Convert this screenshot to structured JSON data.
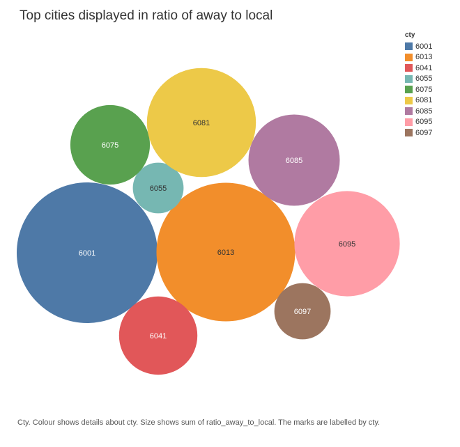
{
  "title": "Top cities displayed in ratio of away to local",
  "legend": {
    "title": "cty",
    "items": [
      {
        "label": "6001",
        "color": "#4e79a7"
      },
      {
        "label": "6013",
        "color": "#f28e2b"
      },
      {
        "label": "6041",
        "color": "#e15759"
      },
      {
        "label": "6055",
        "color": "#76b7b2"
      },
      {
        "label": "6075",
        "color": "#59a14f"
      },
      {
        "label": "6081",
        "color": "#edc948"
      },
      {
        "label": "6085",
        "color": "#b07aa1"
      },
      {
        "label": "6095",
        "color": "#ff9da7"
      },
      {
        "label": "6097",
        "color": "#9c755f"
      }
    ]
  },
  "caption": "Cty.  Colour shows details about cty.  Size shows sum of ratio_away_to_local.  The marks are labelled by cty.",
  "chart_data": {
    "type": "packed-bubble",
    "size_measure": "sum of ratio_away_to_local",
    "values_note": "relative sizes estimated from bubble area",
    "bubbles": [
      {
        "label": "6001",
        "value": 100,
        "color": "#4e79a7",
        "label_color": "#ffffff"
      },
      {
        "label": "6013",
        "value": 97,
        "color": "#f28e2b",
        "label_color": "#333333"
      },
      {
        "label": "6041",
        "value": 31,
        "color": "#e15759",
        "label_color": "#ffffff"
      },
      {
        "label": "6055",
        "value": 13,
        "color": "#76b7b2",
        "label_color": "#333333"
      },
      {
        "label": "6075",
        "value": 32,
        "color": "#59a14f",
        "label_color": "#ffffff"
      },
      {
        "label": "6081",
        "value": 60,
        "color": "#edc948",
        "label_color": "#333333"
      },
      {
        "label": "6085",
        "value": 42,
        "color": "#b07aa1",
        "label_color": "#ffffff"
      },
      {
        "label": "6095",
        "value": 56,
        "color": "#ff9da7",
        "label_color": "#333333"
      },
      {
        "label": "6097",
        "value": 16,
        "color": "#9c755f",
        "label_color": "#ffffff"
      }
    ]
  }
}
